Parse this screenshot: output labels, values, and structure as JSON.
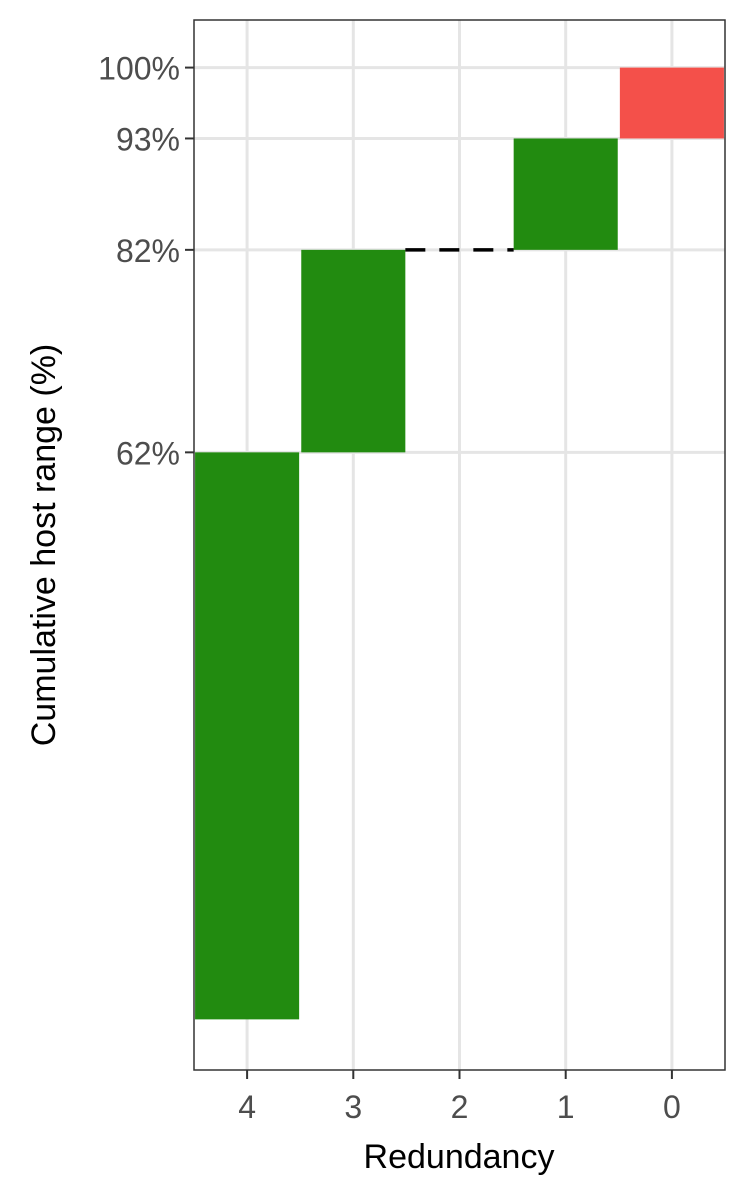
{
  "chart_data": {
    "type": "bar",
    "subtype": "waterfall",
    "title": "",
    "xlabel": "Redundancy",
    "ylabel": "Cumulative host range (%)",
    "categories": [
      "4",
      "3",
      "2",
      "1",
      "0"
    ],
    "bars": [
      {
        "category": "4",
        "ymin": 6,
        "ymax": 62,
        "color": "#228B10"
      },
      {
        "category": "3",
        "ymin": 62,
        "ymax": 82,
        "color": "#228B10"
      },
      {
        "category": "1",
        "ymin": 82,
        "ymax": 93,
        "color": "#228B10"
      },
      {
        "category": "0",
        "ymin": 93,
        "ymax": 100,
        "color": "#F4504A"
      }
    ],
    "connector": {
      "from": "3",
      "to": "1",
      "y": 82,
      "style": "dashed",
      "color": "#000000"
    },
    "yticks": [
      62,
      82,
      93,
      100
    ],
    "ytick_labels": [
      "62%",
      "82%",
      "93%",
      "100%"
    ],
    "ylim": [
      1,
      104.7
    ],
    "grid": true,
    "legend": "none"
  }
}
